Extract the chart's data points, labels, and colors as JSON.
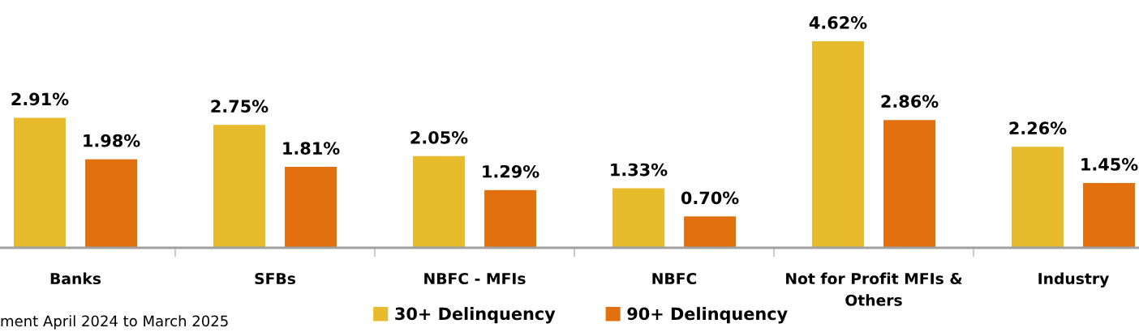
{
  "chart_data": {
    "type": "bar",
    "categories": [
      "Banks",
      "SFBs",
      "NBFC - MFIs",
      "NBFC",
      "Not for Profit MFIs & Others",
      "Industry"
    ],
    "series": [
      {
        "name": "30+ Delinquency",
        "color": "#e8bb2c",
        "values": [
          2.91,
          2.75,
          2.05,
          1.33,
          4.62,
          2.26
        ],
        "value_labels": [
          "2.91%",
          "2.75%",
          "2.05%",
          "1.33%",
          "4.62%",
          "2.26%"
        ]
      },
      {
        "name": "90+ Delinquency",
        "color": "#e2700f",
        "values": [
          1.98,
          1.81,
          1.29,
          0.7,
          2.86,
          1.45
        ],
        "value_labels": [
          "1.98%",
          "1.81%",
          "1.29%",
          "0.70%",
          "2.86%",
          "1.45%"
        ]
      }
    ],
    "annotations": [
      "ment April 2024 to March 2025"
    ],
    "legend": "bottom",
    "grid": false
  }
}
